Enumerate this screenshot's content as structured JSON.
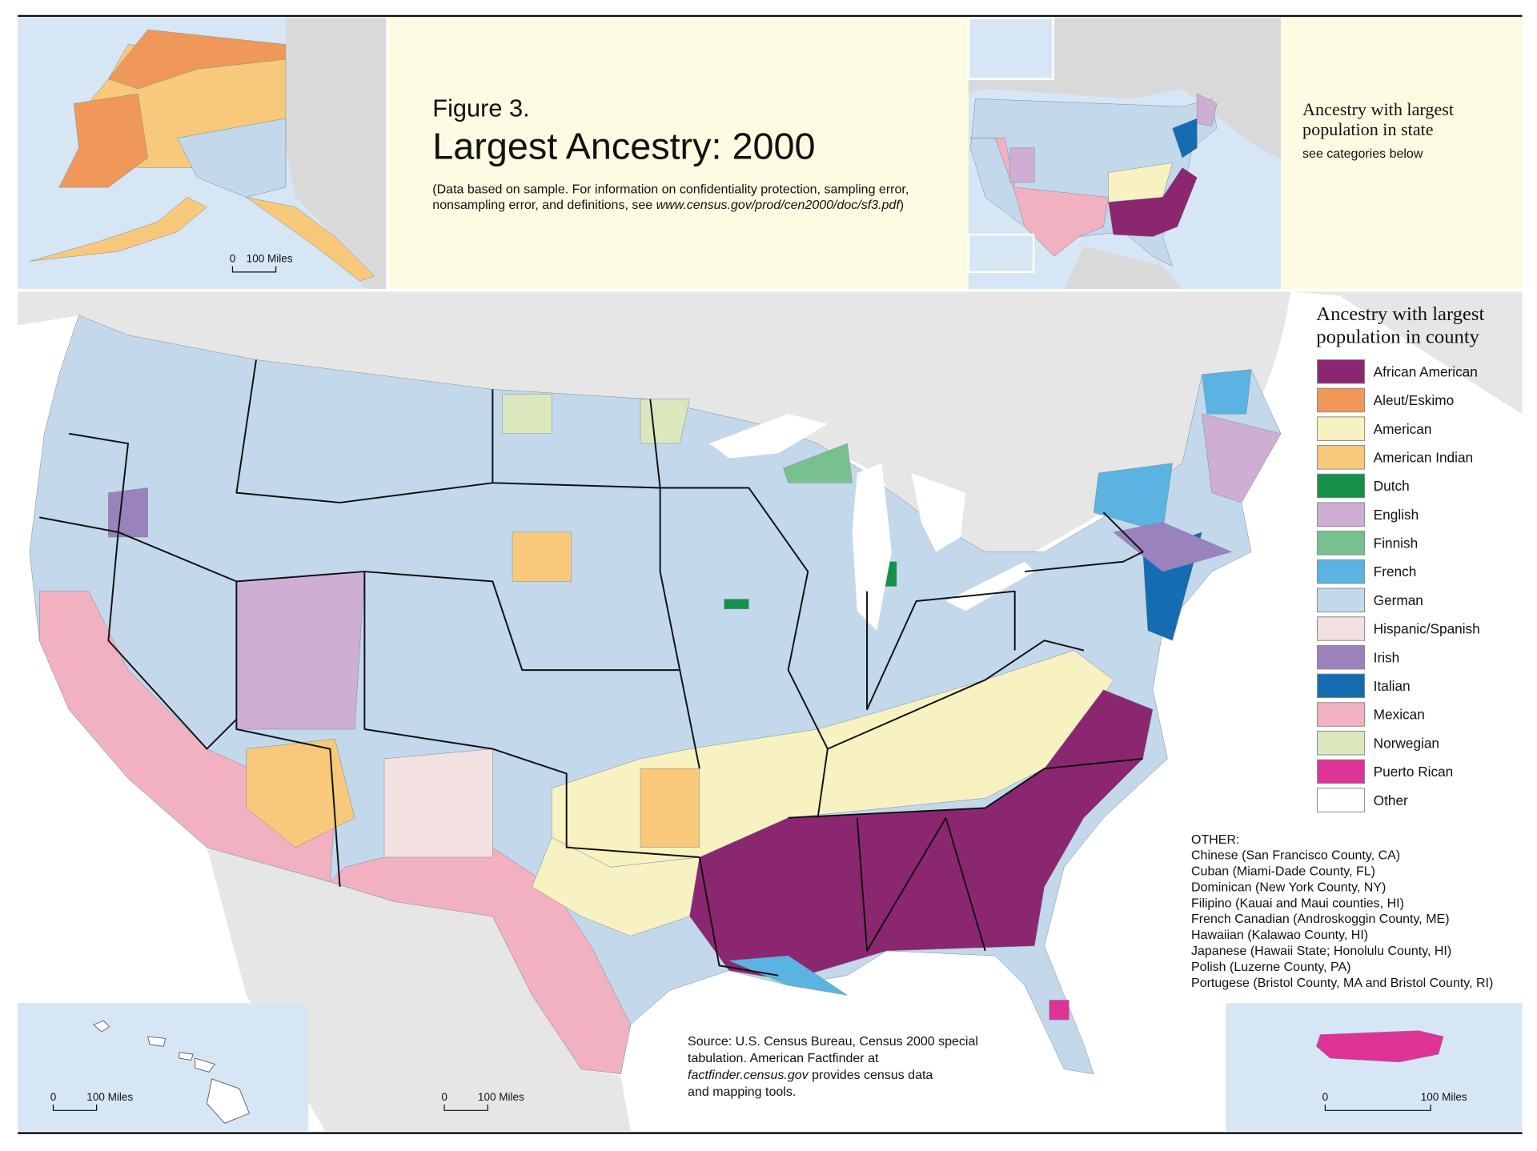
{
  "header": {
    "figure": "Figure 3.",
    "title": "Largest Ancestry: 2000",
    "note_line1": "(Data based on sample. For information on confidentiality protection, sampling error,",
    "note_line2": "nonsampling error, and definitions, see ",
    "note_url": "www.census.gov/prod/cen2000/doc/sf3.pdf",
    "note_end": ")"
  },
  "state_inset": {
    "title_line1": "Ancestry with largest",
    "title_line2": "population in state",
    "subtitle": "see categories below"
  },
  "legend": {
    "title_line1": "Ancestry with largest",
    "title_line2": "population in county",
    "items": [
      {
        "label": "African American",
        "color": "#8b2770"
      },
      {
        "label": "Aleut/Eskimo",
        "color": "#f0985a"
      },
      {
        "label": "American",
        "color": "#f8f2c2"
      },
      {
        "label": "American Indian",
        "color": "#f8c97a"
      },
      {
        "label": "Dutch",
        "color": "#14904a"
      },
      {
        "label": "English",
        "color": "#cfaed4"
      },
      {
        "label": "Finnish",
        "color": "#78c18f"
      },
      {
        "label": "French",
        "color": "#5ab3e0"
      },
      {
        "label": "German",
        "color": "#c3d8ea"
      },
      {
        "label": "Hispanic/Spanish",
        "color": "#f3e0e0"
      },
      {
        "label": "Irish",
        "color": "#9a82bd"
      },
      {
        "label": "Italian",
        "color": "#136db0"
      },
      {
        "label": "Mexican",
        "color": "#f2b1c0"
      },
      {
        "label": "Norwegian",
        "color": "#dbe8be"
      },
      {
        "label": "Puerto Rican",
        "color": "#de3396"
      },
      {
        "label": "Other",
        "color": "#ffffff"
      }
    ]
  },
  "other": {
    "title": "OTHER:",
    "items": [
      "Chinese (San Francisco County, CA)",
      "Cuban (Miami-Dade County, FL)",
      "Dominican (New York County, NY)",
      "Filipino (Kauai and Maui counties, HI)",
      "French Canadian (Androskoggin County, ME)",
      "Hawaiian (Kalawao County, HI)",
      "Japanese (Hawaii State; Honolulu County, HI)",
      "Polish (Luzerne County, PA)",
      "Portugese (Bristol County, MA and Bristol County, RI)"
    ]
  },
  "source": {
    "line1": "Source: U.S. Census Bureau, Census 2000 special",
    "line2": "tabulation. American Factfinder at",
    "line3_url": "factfinder.census.gov",
    "line3_end": " provides census data",
    "line4": "and mapping tools."
  },
  "scale_bars": [
    {
      "zero": "0",
      "label": "100 Miles"
    },
    {
      "zero": "0",
      "label": "100 Miles"
    },
    {
      "zero": "0",
      "label": "100 Miles"
    },
    {
      "zero": "0",
      "label": "100 Miles"
    }
  ]
}
